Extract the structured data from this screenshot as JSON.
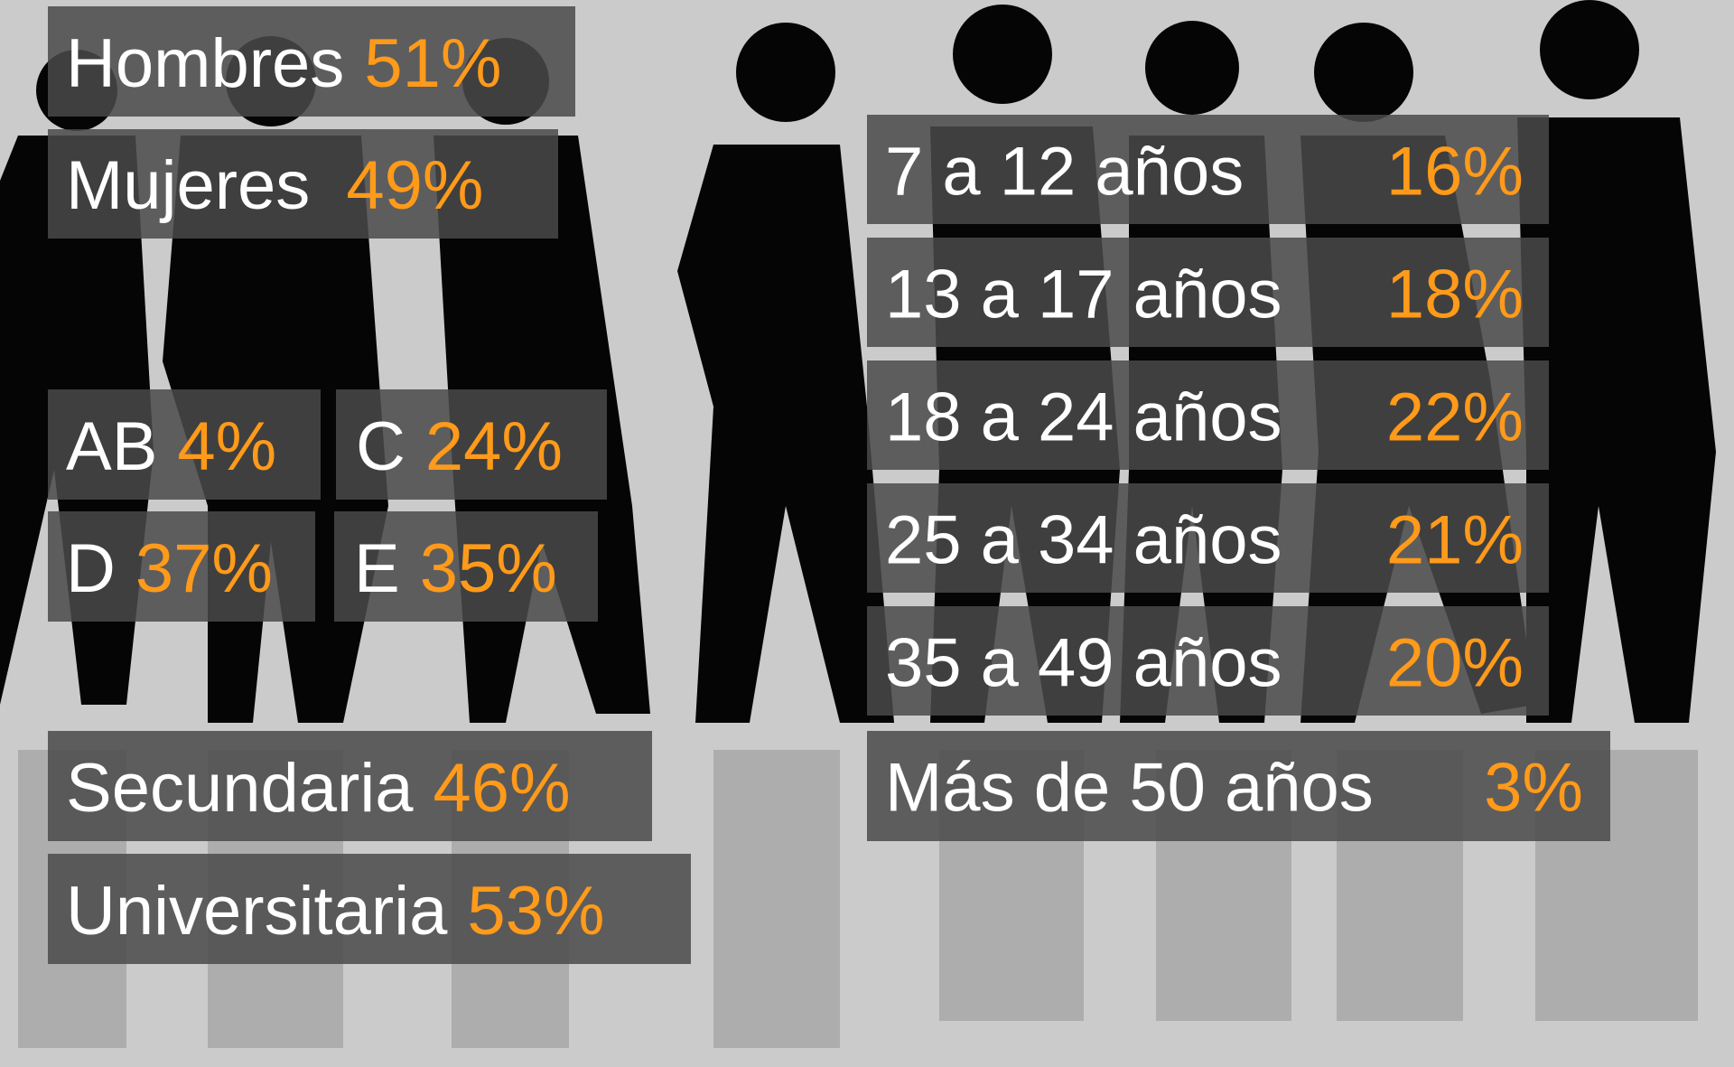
{
  "gender": [
    {
      "label": "Hombres",
      "value": "51%"
    },
    {
      "label": "Mujeres",
      "value": "49%"
    }
  ],
  "socioeconomic": [
    {
      "label": "AB",
      "value": "4%"
    },
    {
      "label": "C",
      "value": "24%"
    },
    {
      "label": "D",
      "value": "37%"
    },
    {
      "label": "E",
      "value": "35%"
    }
  ],
  "education": [
    {
      "label": "Secundaria",
      "value": "46%"
    },
    {
      "label": "Universitaria",
      "value": "53%"
    }
  ],
  "age": [
    {
      "label": "7 a 12 años",
      "value": "16%"
    },
    {
      "label": "13 a 17 años",
      "value": "18%"
    },
    {
      "label": "18 a 24 años",
      "value": "22%"
    },
    {
      "label": "25 a 34 años",
      "value": "21%"
    },
    {
      "label": "35 a 49 años",
      "value": "20%"
    },
    {
      "label": "Más de 50 años",
      "value": "3%"
    }
  ]
}
